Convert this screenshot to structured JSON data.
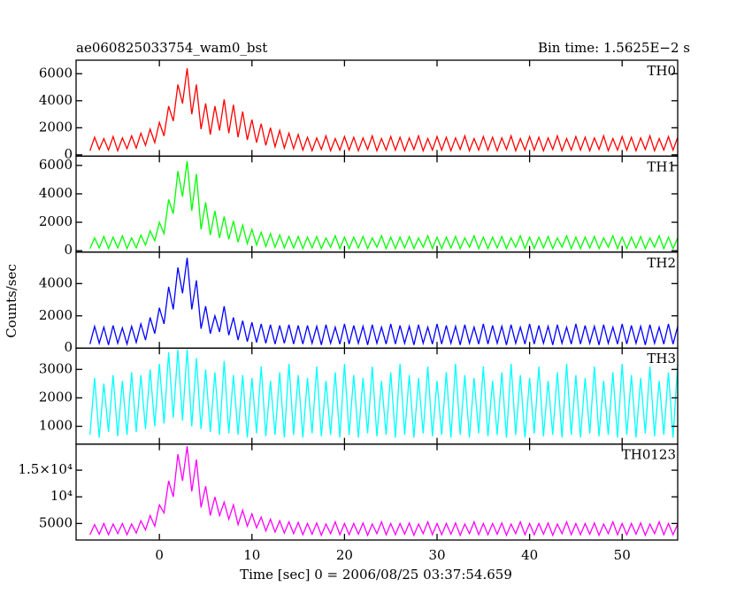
{
  "chart_data": {
    "type": "line",
    "title": "ae060825033754_wam0_bst",
    "subtitle": "Bin time: 1.5625E−2 s",
    "xlabel": "Time [sec] 0 = 2006/08/25 03:37:54.659",
    "ylabel": "Counts/sec",
    "xlim": [
      -9,
      56
    ],
    "xticks": [
      0,
      10,
      20,
      30,
      40,
      50
    ],
    "x": [
      -7.5,
      -7,
      -6.5,
      -6,
      -5.5,
      -5,
      -4.5,
      -4,
      -3.5,
      -3,
      -2.5,
      -2,
      -1.5,
      -1,
      -0.5,
      0,
      0.5,
      1,
      1.5,
      2,
      2.5,
      3,
      3.5,
      4,
      4.5,
      5,
      5.5,
      6,
      6.5,
      7,
      7.5,
      8,
      8.5,
      9,
      9.5,
      10,
      10.5,
      11,
      11.5,
      12,
      12.5,
      13,
      13.5,
      14,
      14.5,
      15,
      15.5,
      16,
      16.5,
      17,
      17.5,
      18,
      18.5,
      19,
      19.5,
      20,
      20.5,
      21,
      21.5,
      22,
      22.5,
      23,
      23.5,
      24,
      24.5,
      25,
      25.5,
      26,
      26.5,
      27,
      27.5,
      28,
      28.5,
      29,
      29.5,
      30,
      30.5,
      31,
      31.5,
      32,
      32.5,
      33,
      33.5,
      34,
      34.5,
      35,
      35.5,
      36,
      36.5,
      37,
      37.5,
      38,
      38.5,
      39,
      39.5,
      40,
      40.5,
      41,
      41.5,
      42,
      42.5,
      43,
      43.5,
      44,
      44.5,
      45,
      45.5,
      46,
      46.5,
      47,
      47.5,
      48,
      48.5,
      49,
      49.5,
      50,
      50.5,
      51,
      51.5,
      52,
      52.5,
      53,
      53.5,
      54,
      54.5,
      55,
      55.5,
      56
    ],
    "series": [
      {
        "name": "TH0",
        "color": "#ff0000",
        "ylim": [
          -100,
          7000
        ],
        "yticks": [
          0,
          2000,
          4000,
          6000
        ],
        "values": [
          300,
          1300,
          400,
          1200,
          350,
          1350,
          300,
          1250,
          450,
          1400,
          500,
          1600,
          700,
          1900,
          900,
          2400,
          1400,
          3600,
          2500,
          5200,
          3800,
          6400,
          3000,
          5200,
          1900,
          3800,
          1500,
          3600,
          1800,
          4100,
          1600,
          3700,
          1300,
          3200,
          1100,
          2600,
          900,
          2300,
          700,
          2000,
          600,
          1800,
          500,
          1600,
          450,
          1500,
          350,
          1300,
          300,
          1250,
          400,
          1400,
          300,
          1200,
          350,
          1350,
          350,
          1300,
          300,
          1250,
          400,
          1400,
          300,
          1200,
          350,
          1350,
          350,
          1300,
          300,
          1250,
          400,
          1400,
          300,
          1200,
          350,
          1350,
          350,
          1300,
          300,
          1250,
          400,
          1400,
          300,
          1200,
          350,
          1350,
          350,
          1300,
          300,
          1250,
          400,
          1400,
          300,
          1200,
          350,
          1350,
          350,
          1300,
          300,
          1250,
          400,
          1400,
          300,
          1200,
          350,
          1350,
          350,
          1300,
          300,
          1250,
          400,
          1400,
          300,
          1200,
          350,
          1350,
          350,
          1300,
          300,
          1250,
          400,
          1400,
          300,
          1200,
          350,
          1350,
          350,
          1300
        ]
      },
      {
        "name": "TH1",
        "color": "#00ff00",
        "ylim": [
          -100,
          6650
        ],
        "yticks": [
          0,
          2000,
          4000,
          6000
        ],
        "values": [
          150,
          900,
          200,
          1000,
          150,
          950,
          200,
          1050,
          150,
          900,
          200,
          1100,
          400,
          1400,
          700,
          2000,
          1200,
          3600,
          2600,
          5600,
          3800,
          6300,
          2800,
          5400,
          1500,
          3400,
          1100,
          2800,
          900,
          2400,
          800,
          2100,
          600,
          1800,
          500,
          1500,
          400,
          1300,
          300,
          1200,
          250,
          1100,
          200,
          1000,
          200,
          1000,
          150,
          950,
          200,
          1000,
          150,
          900,
          250,
          1050,
          150,
          950,
          150,
          950,
          200,
          1000,
          150,
          900,
          250,
          1050,
          150,
          950,
          150,
          950,
          200,
          1000,
          150,
          900,
          250,
          1050,
          150,
          950,
          150,
          950,
          200,
          1000,
          150,
          900,
          250,
          1050,
          150,
          950,
          150,
          950,
          200,
          1000,
          150,
          900,
          250,
          1050,
          150,
          950,
          150,
          950,
          200,
          1000,
          150,
          900,
          250,
          1050,
          150,
          950,
          150,
          950,
          200,
          1000,
          150,
          900,
          250,
          1050,
          150,
          950,
          150,
          950,
          200,
          1000,
          150,
          900,
          250,
          1050,
          150,
          950,
          150,
          900
        ]
      },
      {
        "name": "TH2",
        "color": "#0000ff",
        "ylim": [
          0,
          5950
        ],
        "yticks": [
          0,
          2000,
          4000
        ],
        "values": [
          250,
          1350,
          300,
          1300,
          200,
          1400,
          300,
          1250,
          250,
          1350,
          350,
          1500,
          500,
          1900,
          900,
          2500,
          1500,
          3800,
          2400,
          5000,
          3400,
          5600,
          2400,
          4200,
          1200,
          2600,
          900,
          2000,
          1000,
          2600,
          800,
          1900,
          500,
          1700,
          400,
          1600,
          350,
          1500,
          300,
          1450,
          250,
          1400,
          300,
          1450,
          250,
          1400,
          250,
          1400,
          300,
          1350,
          200,
          1450,
          300,
          1300,
          250,
          1500,
          250,
          1400,
          300,
          1350,
          200,
          1450,
          300,
          1300,
          250,
          1500,
          250,
          1400,
          300,
          1350,
          200,
          1450,
          300,
          1300,
          250,
          1500,
          250,
          1400,
          300,
          1350,
          200,
          1450,
          300,
          1300,
          250,
          1500,
          250,
          1400,
          300,
          1350,
          200,
          1450,
          300,
          1300,
          250,
          1500,
          250,
          1400,
          300,
          1350,
          200,
          1450,
          300,
          1300,
          250,
          1500,
          250,
          1400,
          300,
          1350,
          200,
          1450,
          300,
          1300,
          250,
          1500,
          250,
          1400,
          300,
          1350,
          200,
          1450,
          300,
          1300,
          250,
          1500,
          250,
          1350
        ]
      },
      {
        "name": "TH3",
        "color": "#00ffff",
        "ylim": [
          375,
          3750
        ],
        "yticks": [
          1000,
          2000,
          3000
        ],
        "values": [
          700,
          2700,
          600,
          2500,
          800,
          2800,
          650,
          2600,
          700,
          2900,
          800,
          2800,
          900,
          3000,
          1000,
          3200,
          1100,
          3600,
          1300,
          3700,
          1200,
          3700,
          1000,
          3400,
          900,
          3000,
          800,
          2900,
          700,
          3300,
          750,
          2800,
          700,
          2800,
          600,
          2700,
          750,
          3100,
          650,
          2600,
          700,
          2900,
          600,
          3200,
          700,
          2800,
          600,
          2700,
          750,
          3100,
          650,
          2600,
          700,
          2900,
          600,
          3200,
          700,
          2800,
          600,
          2700,
          750,
          3100,
          650,
          2600,
          700,
          2900,
          600,
          3200,
          700,
          2800,
          600,
          2700,
          750,
          3100,
          650,
          2600,
          700,
          2900,
          600,
          3200,
          700,
          2800,
          600,
          2700,
          750,
          3100,
          650,
          2600,
          700,
          2900,
          600,
          3200,
          700,
          2800,
          600,
          2700,
          750,
          3100,
          650,
          2600,
          700,
          2900,
          600,
          3200,
          700,
          2800,
          600,
          2700,
          750,
          3100,
          650,
          2600,
          700,
          2900,
          600,
          3200,
          700,
          2800,
          600,
          2700,
          750,
          3100,
          650,
          2600,
          700,
          2900,
          600,
          3200
        ]
      },
      {
        "name": "TH0123",
        "color": "#ff00ff",
        "ylim": [
          1900,
          19900
        ],
        "yticks": [
          5000,
          {
            "value": 10000,
            "label": "10⁴"
          },
          {
            "value": 15000,
            "label": "1.5×10⁴"
          }
        ],
        "values": [
          2900,
          4800,
          3000,
          5000,
          2900,
          4900,
          3100,
          5000,
          2900,
          4900,
          3200,
          5500,
          3800,
          6500,
          4500,
          8500,
          7000,
          13000,
          10000,
          18000,
          13000,
          19500,
          11000,
          17000,
          8000,
          12000,
          6500,
          10000,
          6500,
          9000,
          5800,
          8500,
          4800,
          7500,
          4500,
          6800,
          4200,
          6200,
          3600,
          5800,
          3400,
          5500,
          3200,
          5300,
          3100,
          5200,
          2900,
          5000,
          3000,
          5100,
          2800,
          4900,
          3100,
          5300,
          2900,
          5000,
          2900,
          5000,
          3000,
          5100,
          2800,
          4900,
          3100,
          5300,
          2900,
          5000,
          2900,
          5000,
          3000,
          5100,
          2800,
          4900,
          3100,
          5300,
          2900,
          5000,
          2900,
          5000,
          3000,
          5100,
          2800,
          4900,
          3100,
          5300,
          2900,
          5000,
          2900,
          5000,
          3000,
          5100,
          2800,
          4900,
          3100,
          5300,
          2900,
          5000,
          2900,
          5000,
          3000,
          5100,
          2800,
          4900,
          3100,
          5300,
          2900,
          5000,
          2900,
          5000,
          3000,
          5100,
          2800,
          4900,
          3100,
          5300,
          2900,
          5000,
          2900,
          5000,
          3000,
          5100,
          2800,
          4900,
          3100,
          5300,
          2900,
          5000,
          2900,
          4900
        ]
      }
    ]
  }
}
